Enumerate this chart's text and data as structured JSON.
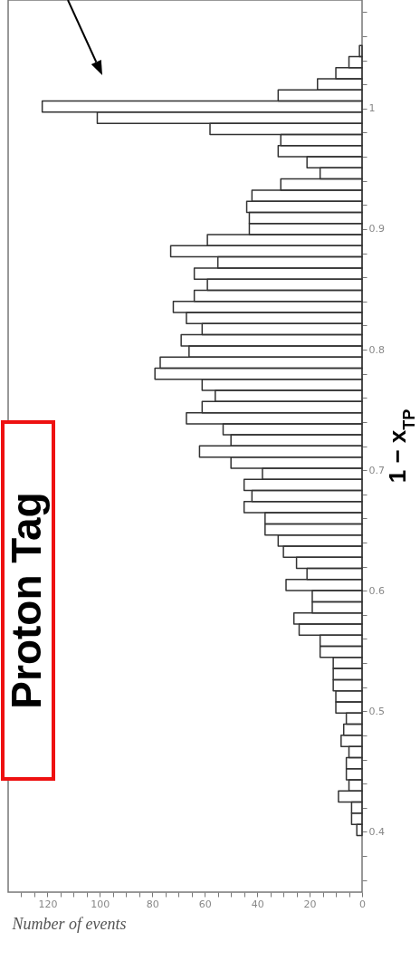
{
  "chart_data": {
    "type": "histogram",
    "orientation": "horizontal",
    "xlabel": "Number of events",
    "ylabel": "1 − x$_{TP}$",
    "color": "#333333",
    "bins": [
      0.397,
      0.4062,
      0.4155,
      0.4247,
      0.4339,
      0.4432,
      0.4524,
      0.4616,
      0.4708,
      0.4801,
      0.4893,
      0.4985,
      0.5078,
      0.517,
      0.5262,
      0.5355,
      0.5447,
      0.5539,
      0.5631,
      0.5724,
      0.5816,
      0.5908,
      0.6001,
      0.6093,
      0.6185,
      0.6278,
      0.637,
      0.6462,
      0.6554,
      0.6647,
      0.6739,
      0.6831,
      0.6924,
      0.7016,
      0.7108,
      0.7201,
      0.7293,
      0.7385,
      0.7477,
      0.757,
      0.7662,
      0.7754,
      0.7847,
      0.7939,
      0.8031,
      0.8124,
      0.8216,
      0.8308,
      0.84,
      0.8493,
      0.8585,
      0.8677,
      0.877,
      0.8862,
      0.8954,
      0.9047,
      0.9139,
      0.9231,
      0.9323,
      0.9416,
      0.9508,
      0.96,
      0.9693,
      0.9785,
      0.9877,
      0.997,
      1.0062,
      1.0154,
      1.0246,
      1.0339,
      1.0431,
      1.0523
    ],
    "values": [
      2,
      4,
      4,
      9,
      5,
      6,
      6,
      5,
      8,
      7,
      6,
      10,
      10,
      11,
      11,
      11,
      16,
      16,
      24,
      26,
      19,
      19,
      29,
      21,
      25,
      30,
      32,
      37,
      37,
      45,
      42,
      45,
      38,
      50,
      62,
      50,
      53,
      67,
      61,
      56,
      61,
      79,
      77,
      66,
      69,
      61,
      67,
      72,
      64,
      59,
      64,
      55,
      73,
      59,
      43,
      43,
      44,
      42,
      31,
      16,
      21,
      32,
      31,
      58,
      101,
      122,
      32,
      17,
      10,
      5,
      1
    ],
    "ylim": [
      0.35,
      1.09
    ],
    "yticks": [
      {
        "value": 0.36,
        "label": null
      },
      {
        "value": 0.38,
        "label": null
      },
      0.4,
      {
        "value": 0.42,
        "label": null
      },
      {
        "value": 0.44,
        "label": null
      },
      {
        "value": 0.46,
        "label": null
      },
      {
        "value": 0.48,
        "label": null
      },
      0.5,
      {
        "value": 0.52,
        "label": null
      },
      {
        "value": 0.54,
        "label": null
      },
      {
        "value": 0.56,
        "label": null
      },
      {
        "value": 0.58,
        "label": null
      },
      0.6,
      {
        "value": 0.62,
        "label": null
      },
      {
        "value": 0.64,
        "label": null
      },
      {
        "value": 0.66,
        "label": null
      },
      {
        "value": 0.68,
        "label": null
      },
      0.7,
      {
        "value": 0.72,
        "label": null
      },
      {
        "value": 0.74,
        "label": null
      },
      {
        "value": 0.76,
        "label": null
      },
      {
        "value": 0.78,
        "label": null
      },
      0.8,
      {
        "value": 0.82,
        "label": null
      },
      {
        "value": 0.84,
        "label": null
      },
      {
        "value": 0.86,
        "label": null
      },
      {
        "value": 0.88,
        "label": null
      },
      0.9,
      {
        "value": 0.92,
        "label": null
      },
      {
        "value": 0.94,
        "label": null
      },
      {
        "value": 0.96,
        "label": null
      },
      {
        "value": 0.98,
        "label": null
      },
      1,
      {
        "value": 1.02,
        "label": null
      },
      {
        "value": 1.04,
        "label": null
      },
      {
        "value": 1.06,
        "label": null
      },
      {
        "value": 1.08,
        "label": null
      }
    ],
    "xlim": [
      135,
      0
    ],
    "xticks": [
      0,
      {
        "value": 5,
        "label": null
      },
      {
        "value": 10,
        "label": null
      },
      {
        "value": 15,
        "label": null
      },
      20,
      {
        "value": 25,
        "label": null
      },
      {
        "value": 30,
        "label": null
      },
      {
        "value": 35,
        "label": null
      },
      40,
      {
        "value": 45,
        "label": null
      },
      {
        "value": 50,
        "label": null
      },
      {
        "value": 55,
        "label": null
      },
      60,
      {
        "value": 65,
        "label": null
      },
      {
        "value": 70,
        "label": null
      },
      {
        "value": 75,
        "label": null
      },
      80,
      {
        "value": 85,
        "label": null
      },
      {
        "value": 90,
        "label": null
      },
      {
        "value": 95,
        "label": null
      },
      100,
      {
        "value": 105,
        "label": null
      },
      {
        "value": 110,
        "label": null
      },
      {
        "value": 115,
        "label": null
      },
      120,
      {
        "value": 125,
        "label": null
      },
      {
        "value": 130,
        "label": null
      }
    ],
    "annotations": [
      "Proton Tag"
    ]
  }
}
